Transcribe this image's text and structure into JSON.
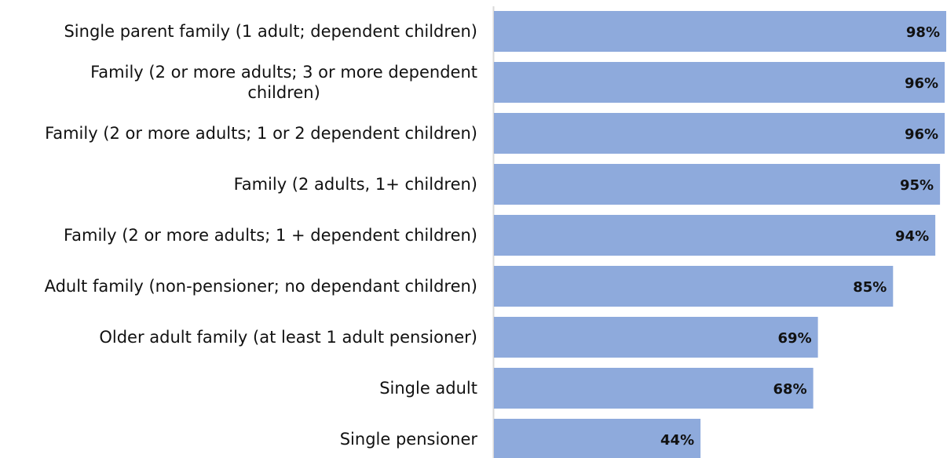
{
  "chart_data": {
    "type": "bar",
    "orientation": "horizontal",
    "categories": [
      "Single parent family (1 adult; dependent children)",
      "Family (2 or more adults; 3 or more dependent children)",
      "Family (2 or more adults; 1 or 2 dependent children)",
      "Family (2 adults, 1+ children)",
      "Family (2 or more adults; 1 + dependent children)",
      "Adult family (non-pensioner; no dependant children)",
      "Older adult family (at least 1 adult pensioner)",
      "Single adult",
      "Single pensioner"
    ],
    "values": [
      98,
      96,
      96,
      95,
      94,
      85,
      69,
      68,
      44
    ],
    "value_labels": [
      "98%",
      "96%",
      "96%",
      "95%",
      "94%",
      "85%",
      "69%",
      "68%",
      "44%"
    ],
    "xlim": [
      0,
      100
    ],
    "grid": false,
    "bar_color": "#8eaadc",
    "axis_color": "#d9d9d9"
  }
}
